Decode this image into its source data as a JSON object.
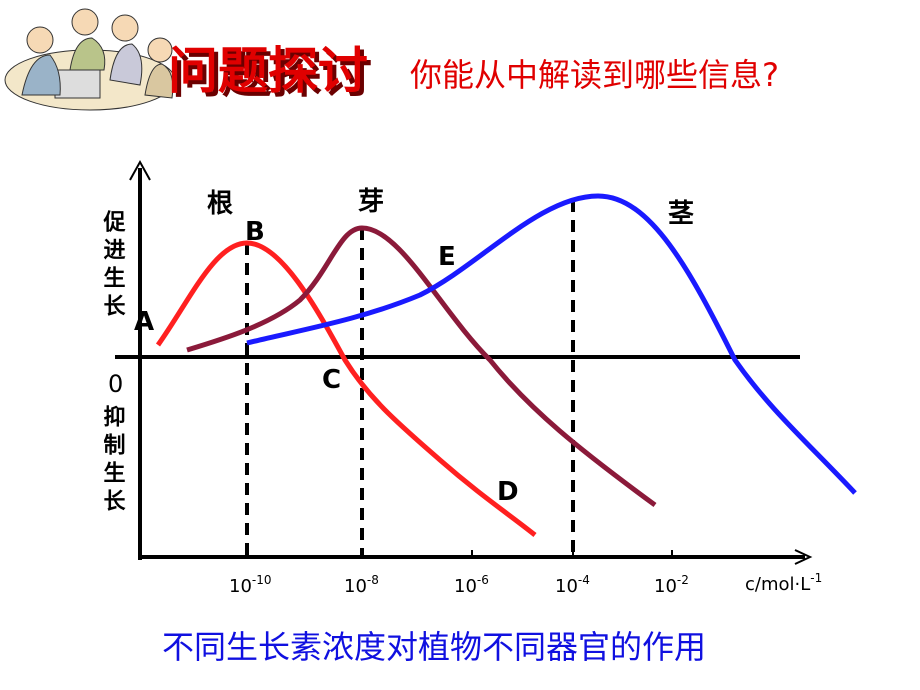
{
  "header": {
    "title": "问题探讨",
    "subtitle": "你能从中解读到哪些信息?"
  },
  "diagram": {
    "y_labels": {
      "promote": "促进生长",
      "zero": "0",
      "inhibit": "抑制生长"
    },
    "curve_labels": {
      "root": "根",
      "bud": "芽",
      "stem": "茎"
    },
    "points": {
      "a": "A",
      "b": "B",
      "c": "C",
      "d": "D",
      "e": "E"
    },
    "x_ticks": [
      {
        "base": "10",
        "exp": "-10"
      },
      {
        "base": "10",
        "exp": "-8"
      },
      {
        "base": "10",
        "exp": "-6"
      },
      {
        "base": "10",
        "exp": "-4"
      },
      {
        "base": "10",
        "exp": "-2"
      }
    ],
    "x_axis_label": {
      "base": "c/mol·L",
      "exp": "-1"
    }
  },
  "caption": "不同生长素浓度对植物不同器官的作用"
}
